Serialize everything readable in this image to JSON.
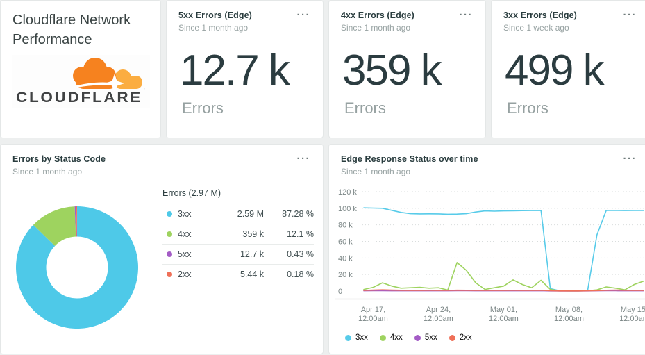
{
  "title_card": {
    "title": "Cloudflare Network Performance",
    "logo_text": "CLOUDFLARE"
  },
  "icons": {
    "menu_glyph": "···"
  },
  "kpi_cards": [
    {
      "title": "5xx Errors (Edge)",
      "subtitle": "Since 1 month ago",
      "value": "12.7 k",
      "unit": "Errors"
    },
    {
      "title": "4xx Errors (Edge)",
      "subtitle": "Since 1 month ago",
      "value": "359 k",
      "unit": "Errors"
    },
    {
      "title": "3xx Errors (Edge)",
      "subtitle": "Since 1 week ago",
      "value": "499 k",
      "unit": "Errors"
    }
  ],
  "donut_card": {
    "title": "Errors by Status Code",
    "subtitle": "Since 1 month ago"
  },
  "line_card": {
    "title": "Edge Response Status over time",
    "subtitle": "Since 1 month ago"
  },
  "chart_data": [
    {
      "type": "pie",
      "subtype": "donut",
      "title": "Errors by Status Code",
      "total_label": "Errors (2.97 M)",
      "labels": [
        "3xx",
        "4xx",
        "5xx",
        "2xx"
      ],
      "values": [
        2590000,
        359000,
        12700,
        5440
      ],
      "value_labels": [
        "2.59 M",
        "359 k",
        "12.7 k",
        "5.44 k"
      ],
      "percent_labels": [
        "87.28 %",
        "12.1 %",
        "0.43 %",
        "0.18 %"
      ],
      "colors": [
        "#4ec9e8",
        "#9ed35f",
        "#a45cc6",
        "#ef7058"
      ],
      "legend_position": "right-table"
    },
    {
      "type": "line",
      "title": "Edge Response Status over time",
      "ylim": [
        0,
        120000
      ],
      "y_ticks": [
        "0",
        "20 k",
        "40 k",
        "60 k",
        "80 k",
        "100 k",
        "120 k"
      ],
      "y_tick_values": [
        0,
        20000,
        40000,
        60000,
        80000,
        100000,
        120000
      ],
      "x_ticks": [
        {
          "line1": "Apr 17,",
          "line2": "12:00am"
        },
        {
          "line1": "Apr 24,",
          "line2": "12:00am"
        },
        {
          "line1": "May 01,",
          "line2": "12:00am"
        },
        {
          "line1": "May 08,",
          "line2": "12:00am"
        },
        {
          "line1": "May 15,",
          "line2": "12:00am"
        }
      ],
      "x_tick_indices": [
        1,
        8,
        15,
        22,
        29
      ],
      "grid": "dotted-horizontal",
      "legend_position": "bottom-left",
      "series": [
        {
          "name": "3xx",
          "color": "#57cbe9",
          "values": [
            100500,
            100300,
            100000,
            97500,
            95000,
            93500,
            93200,
            93300,
            93200,
            92800,
            93000,
            93500,
            95500,
            96800,
            96500,
            96800,
            97000,
            97200,
            97300,
            97400,
            3000,
            400,
            300,
            300,
            300,
            68000,
            97500,
            97400,
            97300,
            97400,
            97400
          ]
        },
        {
          "name": "4xx",
          "color": "#9ed35f",
          "values": [
            2000,
            4500,
            10000,
            6000,
            3500,
            4000,
            4500,
            3500,
            4000,
            1300,
            34500,
            25000,
            10000,
            2000,
            4000,
            6000,
            13500,
            8000,
            4000,
            13000,
            2000,
            300,
            200,
            200,
            300,
            1500,
            5000,
            3500,
            1500,
            8000,
            12000
          ]
        },
        {
          "name": "5xx",
          "color": "#a45cc6",
          "values": [
            300,
            400,
            400,
            300,
            300,
            300,
            300,
            300,
            300,
            300,
            400,
            400,
            300,
            300,
            300,
            300,
            300,
            300,
            300,
            400,
            200,
            100,
            100,
            100,
            200,
            300,
            500,
            400,
            300,
            300,
            300
          ]
        },
        {
          "name": "2xx",
          "color": "#ef7058",
          "values": [
            800,
            1200,
            1500,
            1200,
            1000,
            900,
            900,
            1000,
            900,
            800,
            1100,
            1000,
            900,
            800,
            800,
            900,
            1000,
            900,
            800,
            1000,
            400,
            200,
            200,
            200,
            300,
            600,
            1000,
            1300,
            1000,
            900,
            900
          ]
        }
      ]
    }
  ]
}
